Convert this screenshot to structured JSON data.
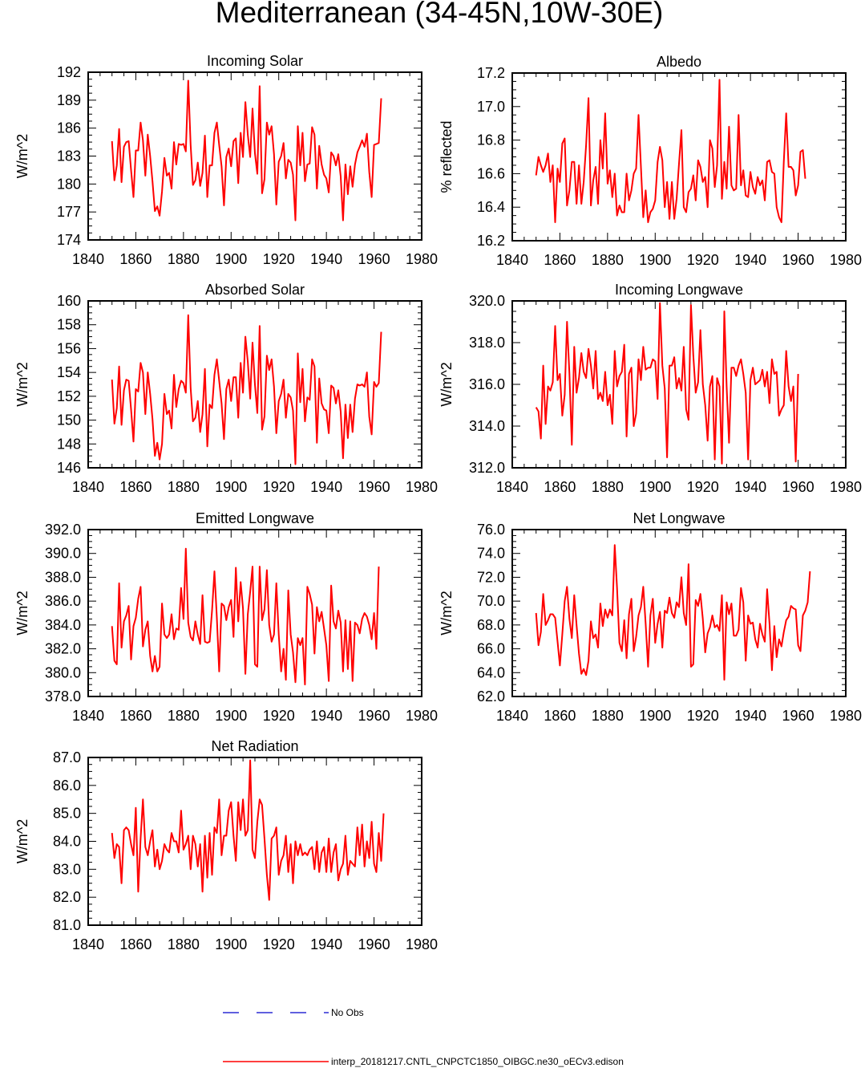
{
  "figure": {
    "title": "Mediterranean (34-45N,10W-30E)",
    "line_color": "#ff0000",
    "obs_color": "#0000cc",
    "legend": {
      "obs_label": "No Obs",
      "model_label": "interp_20181217.CNTL_CNPCTC1850_OIBGC.ne30_oECv3.edison"
    }
  },
  "chart_data": [
    {
      "type": "line",
      "title": "Incoming Solar",
      "ylabel": "W/m^2",
      "xlim": [
        1840,
        1980
      ],
      "ylim": [
        174,
        192
      ],
      "xticks": [
        1840,
        1860,
        1880,
        1900,
        1920,
        1940,
        1960,
        1980
      ],
      "yticks": [
        "174",
        "177",
        "180",
        "183",
        "186",
        "189",
        "192"
      ],
      "x_start": 1850,
      "values": [
        184.6,
        180.4,
        182.0,
        185.9,
        180.2,
        184.0,
        184.5,
        184.6,
        181.5,
        178.6,
        183.6,
        183.6,
        186.6,
        184.7,
        180.9,
        185.3,
        183.0,
        180.3,
        177.1,
        177.6,
        176.6,
        179.2,
        182.8,
        180.9,
        181.2,
        179.5,
        184.5,
        182.1,
        184.3,
        184.2,
        184.3,
        183.5,
        191.1,
        184.2,
        179.9,
        180.4,
        182.3,
        179.8,
        181.2,
        185.2,
        178.6,
        182.0,
        182.0,
        185.5,
        186.6,
        184.2,
        181.9,
        177.7,
        182.9,
        183.8,
        181.9,
        184.6,
        184.9,
        180.1,
        185.5,
        182.9,
        188.8,
        185.3,
        182.9,
        188.1,
        183.3,
        181.1,
        190.5,
        179.0,
        180.5,
        186.6,
        185.3,
        186.2,
        183.2,
        177.8,
        182.4,
        183.0,
        184.4,
        180.6,
        182.6,
        182.3,
        181.0,
        176.1,
        186.2,
        182.0,
        185.5,
        180.3,
        182.1,
        182.2,
        186.1,
        185.3,
        179.5,
        184.1,
        182.1,
        181.0,
        180.6,
        179.1,
        183.4,
        183.0,
        182.0,
        183.2,
        180.8,
        176.1,
        182.1,
        178.9,
        181.9,
        179.7,
        182.1,
        183.4,
        184.0,
        184.7,
        184.0,
        185.4,
        181.3,
        178.6,
        184.2,
        184.3,
        184.4,
        189.2
      ]
    },
    {
      "type": "line",
      "title": "Albedo",
      "ylabel": "% reflected",
      "xlim": [
        1840,
        1980
      ],
      "ylim": [
        16.2,
        17.2
      ],
      "xticks": [
        1840,
        1860,
        1880,
        1900,
        1920,
        1940,
        1960,
        1980
      ],
      "yticks": [
        "16.2",
        "16.4",
        "16.6",
        "16.8",
        "17.0",
        "17.2"
      ],
      "x_start": 1850,
      "values": [
        16.59,
        16.7,
        16.65,
        16.61,
        16.65,
        16.72,
        16.55,
        16.65,
        16.31,
        16.63,
        16.55,
        16.78,
        16.81,
        16.41,
        16.5,
        16.67,
        16.67,
        16.42,
        16.65,
        16.42,
        16.55,
        16.77,
        17.05,
        16.41,
        16.56,
        16.64,
        16.42,
        16.8,
        16.63,
        16.96,
        16.54,
        16.62,
        16.46,
        16.6,
        16.35,
        16.41,
        16.37,
        16.37,
        16.6,
        16.44,
        16.5,
        16.6,
        16.63,
        16.95,
        16.64,
        16.34,
        16.5,
        16.31,
        16.37,
        16.39,
        16.44,
        16.67,
        16.76,
        16.68,
        16.4,
        16.55,
        16.33,
        16.55,
        16.33,
        16.45,
        16.66,
        16.86,
        16.4,
        16.37,
        16.49,
        16.51,
        16.59,
        16.44,
        16.68,
        16.64,
        16.55,
        16.58,
        16.4,
        16.8,
        16.75,
        16.52,
        16.65,
        17.16,
        16.45,
        16.67,
        16.51,
        16.88,
        16.53,
        16.5,
        16.51,
        16.95,
        16.53,
        16.62,
        16.47,
        16.46,
        16.61,
        16.52,
        16.48,
        16.58,
        16.53,
        16.56,
        16.44,
        16.67,
        16.68,
        16.61,
        16.6,
        16.4,
        16.34,
        16.31,
        16.67,
        16.96,
        16.64,
        16.64,
        16.62,
        16.47,
        16.53,
        16.73,
        16.74,
        16.57
      ]
    },
    {
      "type": "line",
      "title": "Absorbed Solar",
      "ylabel": "W/m^2",
      "xlim": [
        1840,
        1980
      ],
      "ylim": [
        146,
        160
      ],
      "xticks": [
        1840,
        1860,
        1880,
        1900,
        1920,
        1940,
        1960,
        1980
      ],
      "yticks": [
        "146",
        "148",
        "150",
        "152",
        "154",
        "156",
        "158",
        "160"
      ],
      "x_start": 1850,
      "values": [
        153.4,
        149.7,
        151.0,
        154.5,
        149.6,
        152.5,
        153.4,
        153.3,
        150.9,
        148.2,
        152.6,
        152.4,
        154.8,
        154.0,
        150.5,
        154.0,
        152.2,
        150.1,
        147.0,
        148.1,
        146.7,
        148.0,
        152.2,
        150.5,
        150.8,
        149.3,
        153.8,
        151.1,
        152.6,
        153.3,
        153.1,
        152.3,
        158.8,
        152.7,
        149.9,
        150.2,
        151.6,
        149.0,
        150.5,
        154.3,
        147.8,
        151.3,
        151.0,
        153.8,
        155.1,
        153.3,
        151.4,
        148.4,
        152.6,
        153.4,
        151.6,
        153.6,
        153.6,
        150.2,
        154.8,
        152.3,
        157.0,
        154.9,
        151.8,
        156.5,
        153.0,
        150.6,
        157.9,
        149.2,
        150.3,
        155.4,
        154.2,
        155.1,
        152.8,
        148.9,
        151.6,
        152.2,
        153.4,
        150.2,
        152.2,
        151.9,
        150.8,
        146.3,
        155.6,
        151.5,
        154.3,
        149.9,
        151.9,
        151.7,
        155.1,
        154.5,
        148.1,
        153.5,
        151.4,
        150.9,
        150.8,
        148.9,
        152.9,
        152.7,
        151.4,
        152.5,
        150.7,
        146.8,
        151.3,
        148.5,
        151.3,
        149.0,
        151.8,
        153.0,
        152.9,
        153.0,
        152.8,
        154.0,
        150.3,
        148.8,
        153.2,
        152.8,
        153.1,
        157.4
      ]
    },
    {
      "type": "line",
      "title": "Incoming Longwave",
      "ylabel": "W/m^2",
      "xlim": [
        1840,
        1980
      ],
      "ylim": [
        312,
        320
      ],
      "xticks": [
        1840,
        1860,
        1880,
        1900,
        1920,
        1940,
        1960,
        1980
      ],
      "yticks": [
        "312.0",
        "314.0",
        "316.0",
        "318.0",
        "320.0"
      ],
      "x_start": 1850,
      "values": [
        314.9,
        314.7,
        313.4,
        316.9,
        314.1,
        315.9,
        315.7,
        316.1,
        318.8,
        316.2,
        316.5,
        314.5,
        315.5,
        319.0,
        316.5,
        313.1,
        317.8,
        315.6,
        316.3,
        317.5,
        316.6,
        316.3,
        317.7,
        316.9,
        315.8,
        317.6,
        315.3,
        315.6,
        315.2,
        316.6,
        315.0,
        315.5,
        314.1,
        317.6,
        315.9,
        316.4,
        316.6,
        317.9,
        313.5,
        316.5,
        316.8,
        314.0,
        314.6,
        317.2,
        316.2,
        317.8,
        316.7,
        316.8,
        316.8,
        317.2,
        317.1,
        315.3,
        319.9,
        316.9,
        315.8,
        312.5,
        316.9,
        316.9,
        317.3,
        315.8,
        316.3,
        315.7,
        317.8,
        314.8,
        314.3,
        319.8,
        317.4,
        315.6,
        316.1,
        318.6,
        316.0,
        315.0,
        313.3,
        315.9,
        316.4,
        312.4,
        316.3,
        315.9,
        312.2,
        319.5,
        315.9,
        313.2,
        316.8,
        316.8,
        316.4,
        316.9,
        317.2,
        316.5,
        315.6,
        312.4,
        316.2,
        316.8,
        316.0,
        316.1,
        316.2,
        316.7,
        315.9,
        316.6,
        315.1,
        317.2,
        316.5,
        316.6,
        314.5,
        314.8,
        315.0,
        317.6,
        315.9,
        315.2,
        315.9,
        312.3,
        316.5
      ]
    },
    {
      "type": "line",
      "title": "Emitted Longwave",
      "ylabel": "W/m^2",
      "xlim": [
        1840,
        1980
      ],
      "ylim": [
        378,
        392
      ],
      "xticks": [
        1840,
        1860,
        1880,
        1900,
        1920,
        1940,
        1960,
        1980
      ],
      "yticks": [
        "378.0",
        "380.0",
        "382.0",
        "384.0",
        "386.0",
        "388.0",
        "390.0",
        "392.0"
      ],
      "x_start": 1850,
      "values": [
        383.9,
        381.0,
        380.7,
        387.5,
        382.1,
        384.3,
        384.8,
        385.6,
        381.1,
        383.9,
        384.6,
        386.2,
        387.2,
        382.2,
        383.6,
        384.3,
        381.4,
        380.1,
        381.4,
        380.1,
        380.5,
        385.8,
        383.2,
        382.9,
        383.2,
        384.9,
        382.8,
        383.7,
        383.6,
        387.1,
        384.5,
        390.4,
        384.2,
        383.0,
        382.7,
        384.3,
        383.2,
        382.4,
        386.5,
        382.6,
        382.5,
        382.6,
        385.2,
        388.5,
        384.6,
        380.1,
        385.8,
        385.6,
        384.4,
        385.5,
        386.1,
        383.0,
        388.8,
        384.3,
        387.6,
        385.4,
        379.9,
        384.9,
        386.8,
        388.9,
        380.7,
        380.5,
        388.9,
        384.4,
        385.3,
        388.6,
        384.0,
        382.6,
        383.2,
        387.5,
        383.2,
        380.1,
        382.0,
        379.4,
        386.9,
        383.2,
        381.7,
        379.2,
        382.9,
        382.3,
        382.9,
        379.0,
        387.2,
        386.6,
        385.7,
        381.6,
        385.5,
        384.3,
        385.1,
        383.7,
        382.3,
        379.3,
        387.3,
        384.3,
        383.7,
        385.2,
        384.2,
        380.1,
        384.4,
        380.3,
        384.3,
        379.3,
        384.2,
        384.0,
        383.3,
        384.5,
        385.0,
        384.7,
        384.0,
        382.8,
        385.0,
        382.0,
        388.9
      ]
    },
    {
      "type": "line",
      "title": "Net Longwave",
      "ylabel": "W/m^2",
      "xlim": [
        1840,
        1980
      ],
      "ylim": [
        62,
        76
      ],
      "xticks": [
        1840,
        1860,
        1880,
        1900,
        1920,
        1940,
        1960,
        1980
      ],
      "yticks": [
        "62.0",
        "64.0",
        "66.0",
        "68.0",
        "70.0",
        "72.0",
        "74.0",
        "76.0"
      ],
      "x_start": 1850,
      "values": [
        69.0,
        66.3,
        67.4,
        70.6,
        68.0,
        68.4,
        68.9,
        68.9,
        68.6,
        66.6,
        64.6,
        67.2,
        70.0,
        71.2,
        68.5,
        66.9,
        70.5,
        68.0,
        65.6,
        63.9,
        64.3,
        63.8,
        65.0,
        68.3,
        66.9,
        67.2,
        66.1,
        69.8,
        67.9,
        69.3,
        68.6,
        69.3,
        68.8,
        74.7,
        71.1,
        66.5,
        65.8,
        68.4,
        65.2,
        68.9,
        70.2,
        65.8,
        67.0,
        68.8,
        69.5,
        71.2,
        68.1,
        64.5,
        68.8,
        70.2,
        66.5,
        68.1,
        69.1,
        66.1,
        69.2,
        69.0,
        70.3,
        69.0,
        68.6,
        69.9,
        69.5,
        72.0,
        69.0,
        68.0,
        73.1,
        64.5,
        64.7,
        70.1,
        69.6,
        70.6,
        68.5,
        65.7,
        67.3,
        67.8,
        68.8,
        67.8,
        68.0,
        67.5,
        70.5,
        63.4,
        69.9,
        68.9,
        69.8,
        67.1,
        67.1,
        67.6,
        71.1,
        69.9,
        65.0,
        68.8,
        68.1,
        68.2,
        66.8,
        66.1,
        68.1,
        67.2,
        66.6,
        71.0,
        68.1,
        64.2,
        67.9,
        65.3,
        66.8,
        66.2,
        67.4,
        68.4,
        68.7,
        69.6,
        69.4,
        69.3,
        66.3,
        65.8,
        68.8,
        69.2,
        69.9,
        72.5
      ]
    },
    {
      "type": "line",
      "title": "Net Radiation",
      "ylabel": "W/m^2",
      "xlim": [
        1840,
        1980
      ],
      "ylim": [
        81,
        87
      ],
      "xticks": [
        1840,
        1860,
        1880,
        1900,
        1920,
        1940,
        1960,
        1980
      ],
      "yticks": [
        "81.0",
        "82.0",
        "83.0",
        "84.0",
        "85.0",
        "86.0",
        "87.0"
      ],
      "x_start": 1850,
      "values": [
        84.3,
        83.4,
        83.9,
        83.8,
        82.5,
        84.4,
        84.5,
        84.4,
        83.9,
        83.5,
        85.2,
        82.2,
        84.1,
        85.5,
        83.8,
        83.5,
        84.0,
        84.4,
        83.1,
        83.7,
        83.0,
        83.3,
        83.9,
        83.7,
        83.6,
        84.3,
        84.0,
        84.0,
        83.6,
        85.1,
        83.7,
        83.9,
        84.2,
        83.0,
        84.2,
        83.9,
        83.1,
        83.9,
        82.2,
        84.2,
        82.7,
        84.3,
        82.8,
        84.5,
        84.3,
        85.5,
        83.5,
        84.2,
        84.2,
        85.1,
        85.4,
        84.2,
        83.3,
        85.4,
        84.4,
        85.5,
        84.2,
        84.4,
        86.9,
        83.7,
        83.4,
        84.7,
        85.5,
        85.3,
        84.1,
        82.8,
        81.9,
        84.1,
        84.2,
        84.5,
        82.8,
        83.3,
        83.5,
        84.2,
        82.9,
        83.9,
        82.5,
        84.0,
        83.5,
        83.9,
        83.5,
        83.6,
        83.5,
        83.7,
        83.8,
        83.0,
        84.0,
        82.9,
        83.6,
        83.8,
        82.9,
        84.1,
        82.9,
        83.6,
        83.9,
        82.6,
        83.0,
        83.2,
        84.2,
        82.8,
        83.3,
        83.2,
        83.1,
        84.5,
        83.5,
        84.6,
        83.1,
        84.0,
        83.4,
        84.7,
        83.2,
        82.9,
        84.3,
        83.3,
        85.0
      ]
    }
  ]
}
